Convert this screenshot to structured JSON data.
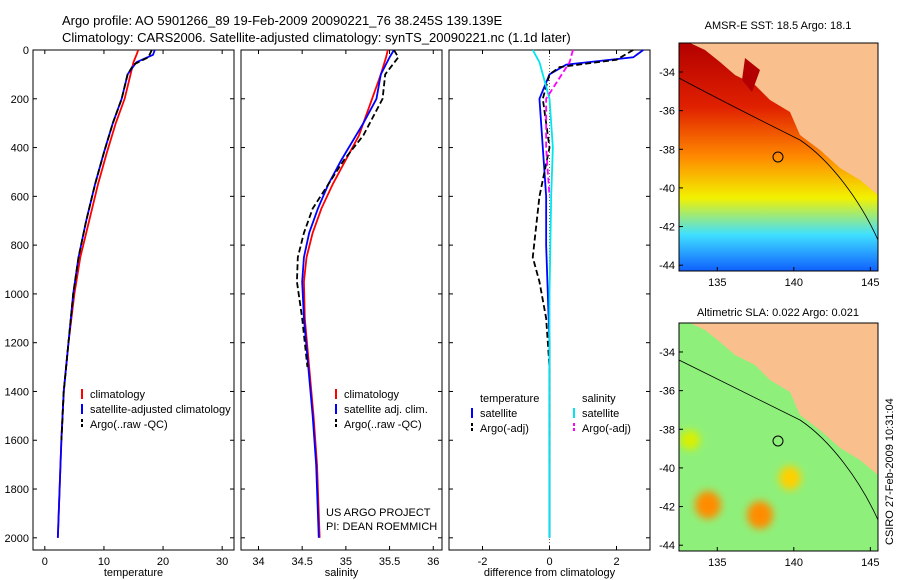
{
  "header": {
    "line1": "Argo profile: AO 5901266_89 19-Feb-2009 20090221_76 38.245S 139.139E",
    "line2": "Climatology: CARS2006. Satellite-adjusted climatology: synTS_20090221.nc (1.1d later)"
  },
  "side_label": "CSIRO 27-Feb-2009 10:31:04",
  "project_note": {
    "line1": "US ARGO PROJECT",
    "line2": "PI: DEAN ROEMMICH"
  },
  "colors": {
    "clim": "#ff0000",
    "sat": "#0000ff",
    "argo": "#000000",
    "sat_diff": "#00e5ee",
    "argo_adj_sal": "#ff00ff"
  },
  "chart_data": [
    {
      "type": "line",
      "xlabel": "temperature",
      "xlim": [
        -2,
        32
      ],
      "ylim": [
        0,
        2050
      ],
      "y_reversed": true,
      "xticks": [
        0,
        10,
        20,
        30
      ],
      "yticks": [
        0,
        200,
        400,
        600,
        800,
        1000,
        1200,
        1400,
        1600,
        1800,
        2000
      ],
      "legend": [
        "climatology",
        "satellite-adjusted climatology",
        "Argo(..raw -QC)"
      ],
      "series": [
        {
          "key": "clim",
          "values": [
            [
              15.8,
              0
            ],
            [
              15.5,
              20
            ],
            [
              15,
              50
            ],
            [
              14.5,
              100
            ],
            [
              13.5,
              200
            ],
            [
              12,
              300
            ],
            [
              10.5,
              420
            ],
            [
              9,
              550
            ],
            [
              7.5,
              700
            ],
            [
              6,
              850
            ],
            [
              5,
              1000
            ],
            [
              4,
              1200
            ],
            [
              3.2,
              1400
            ],
            [
              2.8,
              1600
            ],
            [
              2.5,
              1800
            ],
            [
              2.2,
              2000
            ]
          ]
        },
        {
          "key": "sat",
          "values": [
            [
              18.6,
              0
            ],
            [
              18.3,
              20
            ],
            [
              15.5,
              50
            ],
            [
              14,
              100
            ],
            [
              13,
              200
            ],
            [
              11.5,
              300
            ],
            [
              10,
              420
            ],
            [
              8.5,
              550
            ],
            [
              7,
              700
            ],
            [
              5.7,
              850
            ],
            [
              4.8,
              1000
            ],
            [
              4,
              1200
            ],
            [
              3.2,
              1400
            ],
            [
              2.8,
              1600
            ],
            [
              2.5,
              1800
            ],
            [
              2.2,
              2000
            ]
          ]
        },
        {
          "key": "argo",
          "values": [
            [
              18.1,
              0
            ],
            [
              17.5,
              30
            ],
            [
              15,
              60
            ],
            [
              14,
              100
            ],
            [
              13,
              200
            ],
            [
              11.5,
              300
            ],
            [
              10,
              420
            ],
            [
              8.5,
              550
            ],
            [
              7,
              700
            ],
            [
              5.7,
              850
            ],
            [
              4.8,
              1000
            ],
            [
              4,
              1200
            ],
            [
              3.2,
              1400
            ],
            [
              2.8,
              1600
            ]
          ]
        }
      ]
    },
    {
      "type": "line",
      "xlabel": "salinity",
      "xlim": [
        33.8,
        36.1
      ],
      "ylim": [
        0,
        2050
      ],
      "y_reversed": true,
      "xticks": [
        34,
        34.5,
        35,
        35.5,
        36
      ],
      "legend": [
        "climatology",
        "satellite adj. clim.",
        "Argo(..raw -QC)"
      ],
      "series": [
        {
          "key": "clim",
          "values": [
            [
              35.48,
              0
            ],
            [
              35.46,
              30
            ],
            [
              35.4,
              100
            ],
            [
              35.3,
              200
            ],
            [
              35.15,
              350
            ],
            [
              35.0,
              450
            ],
            [
              34.85,
              550
            ],
            [
              34.72,
              650
            ],
            [
              34.62,
              750
            ],
            [
              34.55,
              850
            ],
            [
              34.52,
              950
            ],
            [
              34.53,
              1100
            ],
            [
              34.58,
              1300
            ],
            [
              34.63,
              1500
            ],
            [
              34.67,
              1700
            ],
            [
              34.7,
              2000
            ]
          ]
        },
        {
          "key": "sat",
          "values": [
            [
              35.55,
              0
            ],
            [
              35.5,
              30
            ],
            [
              35.4,
              100
            ],
            [
              35.35,
              200
            ],
            [
              35.2,
              300
            ],
            [
              34.95,
              450
            ],
            [
              34.8,
              550
            ],
            [
              34.68,
              650
            ],
            [
              34.58,
              750
            ],
            [
              34.52,
              850
            ],
            [
              34.5,
              950
            ],
            [
              34.52,
              1100
            ],
            [
              34.57,
              1300
            ],
            [
              34.62,
              1500
            ],
            [
              34.66,
              1700
            ],
            [
              34.69,
              2000
            ]
          ]
        },
        {
          "key": "argo",
          "values": [
            [
              35.55,
              0
            ],
            [
              35.6,
              30
            ],
            [
              35.45,
              100
            ],
            [
              35.42,
              200
            ],
            [
              35.2,
              350
            ],
            [
              34.98,
              450
            ],
            [
              34.8,
              550
            ],
            [
              34.62,
              650
            ],
            [
              34.52,
              750
            ],
            [
              34.45,
              850
            ],
            [
              34.44,
              950
            ],
            [
              34.5,
              1100
            ],
            [
              34.56,
              1300
            ]
          ]
        }
      ]
    },
    {
      "type": "line",
      "xlabel": "difference from climatology",
      "xlim": [
        -3,
        3
      ],
      "ylim": [
        0,
        2050
      ],
      "y_reversed": true,
      "xticks": [
        -2,
        0,
        2
      ],
      "legend_groups": [
        {
          "title": "temperature",
          "items": [
            "satellite",
            "Argo(-adj)"
          ]
        },
        {
          "title": "salinity",
          "items": [
            "satellite",
            "Argo(-adj)"
          ]
        }
      ],
      "series": [
        {
          "key": "sat",
          "values": [
            [
              2.8,
              0
            ],
            [
              2.5,
              30
            ],
            [
              0.5,
              60
            ],
            [
              0,
              100
            ],
            [
              -0.3,
              200
            ],
            [
              -0.2,
              400
            ],
            [
              -0.1,
              600
            ],
            [
              -0.1,
              800
            ],
            [
              -0.05,
              1000
            ],
            [
              0,
              1200
            ],
            [
              0,
              2000
            ]
          ]
        },
        {
          "key": "argo",
          "values": [
            [
              2.5,
              0
            ],
            [
              2,
              40
            ],
            [
              0.3,
              70
            ],
            [
              0,
              100
            ],
            [
              -0.2,
              200
            ],
            [
              0,
              400
            ],
            [
              -0.3,
              600
            ],
            [
              -0.5,
              850
            ],
            [
              -0.3,
              950
            ],
            [
              -0.1,
              1100
            ],
            [
              0,
              1300
            ],
            [
              0,
              1700
            ]
          ]
        },
        {
          "key": "sat_diff",
          "values": [
            [
              -0.5,
              0
            ],
            [
              -0.3,
              50
            ],
            [
              -0.2,
              100
            ],
            [
              0,
              200
            ],
            [
              0.1,
              400
            ],
            [
              0.05,
              600
            ],
            [
              0,
              1000
            ],
            [
              0,
              2000
            ]
          ]
        },
        {
          "key": "argo_adj_sal",
          "values": [
            [
              0.7,
              0
            ],
            [
              0.6,
              50
            ],
            [
              -0.1,
              200
            ],
            [
              -0.1,
              400
            ],
            [
              0,
              600
            ]
          ]
        }
      ]
    }
  ],
  "maps": [
    {
      "title": "AMSR-E SST: 18.5 Argo: 18.1",
      "xticks": [
        135,
        140,
        145
      ],
      "yticks": [
        -34,
        -36,
        -38,
        -40,
        -42,
        -44
      ]
    },
    {
      "title": "Altimetric SLA: 0.022 Argo: 0.021",
      "xticks": [
        135,
        140,
        145
      ],
      "yticks": [
        -34,
        -36,
        -38,
        -40,
        -42,
        -44
      ]
    }
  ]
}
